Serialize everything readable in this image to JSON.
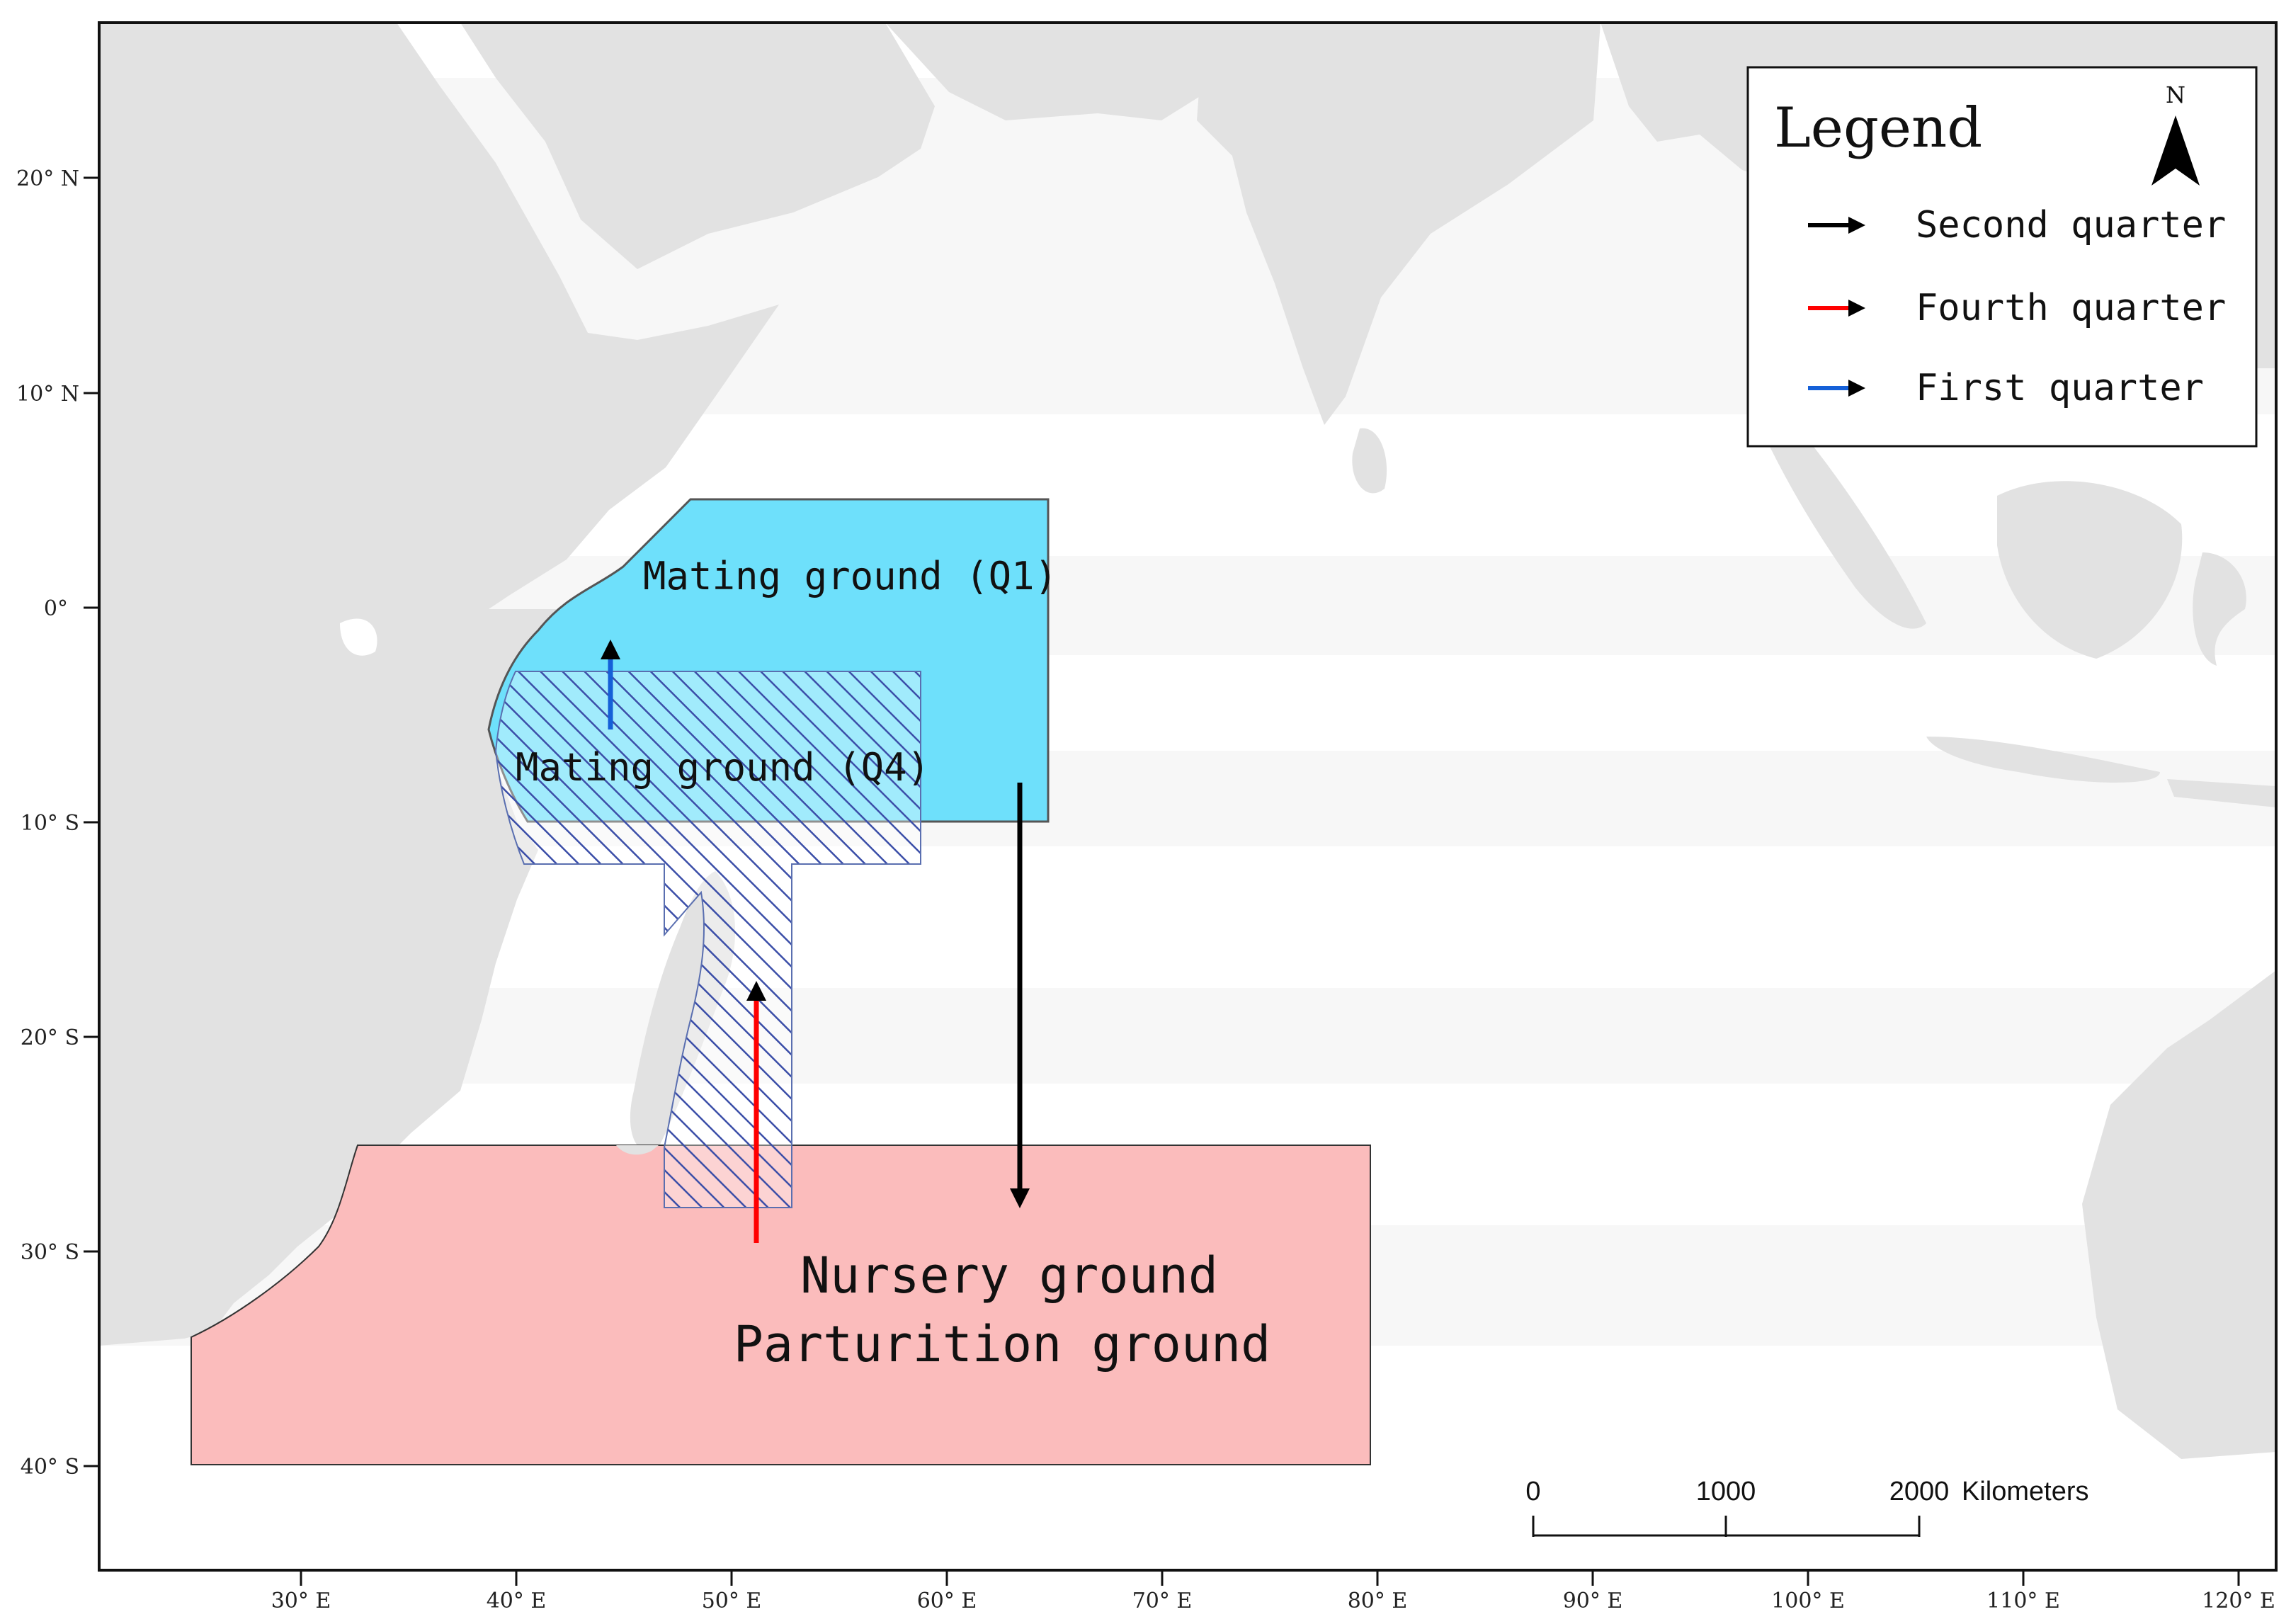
{
  "map": {
    "lon_ticks": [
      "30° E",
      "40° E",
      "50° E",
      "60° E",
      "70° E",
      "80° E",
      "90° E",
      "100° E",
      "110° E",
      "120° E"
    ],
    "lat_ticks": [
      "20° N",
      "10° N",
      "0°",
      "10° S",
      "20° S",
      "30° S",
      "40° S"
    ],
    "regions": {
      "mating_q1": "Mating ground (Q1)",
      "mating_q4": "Mating ground (Q4)",
      "nursery": "Nursery ground",
      "parturition": "Parturition ground"
    },
    "colors": {
      "ocean": "#ffffff",
      "land": "#e2e2e2",
      "mating_q1": "#6ee0fb",
      "nursery": "#fbbcbc",
      "hatch": "#3b4ea8",
      "second_quarter_arrow": "#000000",
      "fourth_quarter_arrow": "#ff0000",
      "first_quarter_arrow": "#1560d8"
    }
  },
  "legend": {
    "title": "Legend",
    "north": "N",
    "items": [
      {
        "label": "Second quarter",
        "color": "#000000"
      },
      {
        "label": "Fourth quarter",
        "color": "#ff0000"
      },
      {
        "label": "First quarter",
        "color": "#1560d8"
      }
    ]
  },
  "scale_bar": {
    "ticks": [
      "0",
      "1000",
      "2000"
    ],
    "unit": "Kilometers"
  }
}
